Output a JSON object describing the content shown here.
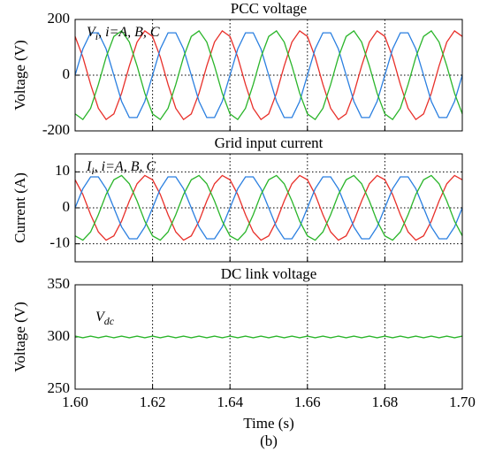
{
  "caption": "(b)",
  "chart_data": [
    {
      "type": "line",
      "title": "PCC voltage",
      "ylabel": "Voltage (V)",
      "annotation": {
        "symbol": "V",
        "subscript": "i",
        "text": ", i=A, B, C"
      },
      "xlim": [
        1.6,
        1.7
      ],
      "xticks": [
        {
          "value": 1.6,
          "label": "1.60"
        },
        1.62,
        1.64,
        1.66,
        1.68,
        {
          "value": 1.7,
          "label": "1.70"
        }
      ],
      "ylim": [
        -200,
        200
      ],
      "yticks": [
        -200,
        0,
        200
      ],
      "xgrid": true,
      "ygrid": true,
      "x": [
        1.6,
        1.602,
        1.604,
        1.606,
        1.608,
        1.61,
        1.612,
        1.614,
        1.616,
        1.618,
        1.62,
        1.622,
        1.624,
        1.626,
        1.628,
        1.63,
        1.632,
        1.634,
        1.636,
        1.638,
        1.64,
        1.642,
        1.644,
        1.646,
        1.648,
        1.65,
        1.652,
        1.654,
        1.656,
        1.658,
        1.66,
        1.662,
        1.664,
        1.666,
        1.668,
        1.67,
        1.672,
        1.674,
        1.676,
        1.678,
        1.68,
        1.682,
        1.684,
        1.686,
        1.688,
        1.69,
        1.692,
        1.694,
        1.696,
        1.698,
        1.7
      ],
      "series": [
        {
          "color": "#e8302a",
          "values": [
            139,
            65,
            -33,
            -119,
            -159,
            -139,
            -65,
            33,
            119,
            159,
            139,
            65,
            -33,
            -119,
            -159,
            -139,
            -65,
            33,
            119,
            159,
            139,
            65,
            -33,
            -119,
            -159,
            -139,
            -65,
            33,
            119,
            159,
            139,
            65,
            -33,
            -119,
            -159,
            -139,
            -65,
            33,
            119,
            159,
            139,
            65,
            -33,
            -119,
            -159,
            -139,
            -65,
            33,
            119,
            159,
            139
          ]
        },
        {
          "color": "#2a7fe0",
          "values": [
            0,
            94,
            152,
            152,
            94,
            0,
            -94,
            -152,
            -152,
            -94,
            0,
            94,
            152,
            152,
            94,
            0,
            -94,
            -152,
            -152,
            -94,
            0,
            94,
            152,
            152,
            94,
            0,
            -94,
            -152,
            -152,
            -94,
            0,
            94,
            152,
            152,
            94,
            0,
            -94,
            -152,
            -152,
            -94,
            0,
            94,
            152,
            152,
            94,
            0,
            -94,
            -152,
            -152,
            -94,
            0
          ]
        },
        {
          "color": "#2ab52a",
          "values": [
            -139,
            -159,
            -119,
            -33,
            65,
            139,
            159,
            119,
            33,
            -65,
            -139,
            -159,
            -119,
            -33,
            65,
            139,
            159,
            119,
            33,
            -65,
            -139,
            -159,
            -119,
            -33,
            65,
            139,
            159,
            119,
            33,
            -65,
            -139,
            -159,
            -119,
            -33,
            65,
            139,
            159,
            119,
            33,
            -65,
            -139,
            -159,
            -119,
            -33,
            65,
            139,
            159,
            119,
            33,
            -65,
            -139
          ]
        }
      ]
    },
    {
      "type": "line",
      "title": "Grid input current",
      "ylabel": "Current (A)",
      "annotation": {
        "symbol": "I",
        "subscript": "i",
        "text": ", i=A, B, C"
      },
      "xlim": [
        1.6,
        1.7
      ],
      "xticks": [
        {
          "value": 1.6,
          "label": "1.60"
        },
        1.62,
        1.64,
        1.66,
        1.68,
        {
          "value": 1.7,
          "label": "1.70"
        }
      ],
      "ylim": [
        -15,
        15
      ],
      "yticks": [
        -10,
        0,
        10
      ],
      "xgrid": true,
      "ygrid": true,
      "x": [
        1.6,
        1.602,
        1.604,
        1.606,
        1.608,
        1.61,
        1.612,
        1.614,
        1.616,
        1.618,
        1.62,
        1.622,
        1.624,
        1.626,
        1.628,
        1.63,
        1.632,
        1.634,
        1.636,
        1.638,
        1.64,
        1.642,
        1.644,
        1.646,
        1.648,
        1.65,
        1.652,
        1.654,
        1.656,
        1.658,
        1.66,
        1.662,
        1.664,
        1.666,
        1.668,
        1.67,
        1.672,
        1.674,
        1.676,
        1.678,
        1.68,
        1.682,
        1.684,
        1.686,
        1.688,
        1.69,
        1.692,
        1.694,
        1.696,
        1.698,
        1.7
      ],
      "series": [
        {
          "color": "#e8302a",
          "values": [
            7.8,
            3.7,
            -1.9,
            -6.7,
            -9,
            -7.8,
            -3.7,
            1.9,
            6.7,
            9,
            7.8,
            3.7,
            -1.9,
            -6.7,
            -9,
            -7.8,
            -3.7,
            1.9,
            6.7,
            9,
            7.8,
            3.7,
            -1.9,
            -6.7,
            -9,
            -7.8,
            -3.7,
            1.9,
            6.7,
            9,
            7.8,
            3.7,
            -1.9,
            -6.7,
            -9,
            -7.8,
            -3.7,
            1.9,
            6.7,
            9,
            7.8,
            3.7,
            -1.9,
            -6.7,
            -9,
            -7.8,
            -3.7,
            1.9,
            6.7,
            9,
            7.8
          ]
        },
        {
          "color": "#2a7fe0",
          "values": [
            0,
            5.3,
            8.6,
            8.6,
            5.3,
            0,
            -5.3,
            -8.6,
            -8.6,
            -5.3,
            0,
            5.3,
            8.6,
            8.6,
            5.3,
            0,
            -5.3,
            -8.6,
            -8.6,
            -5.3,
            0,
            5.3,
            8.6,
            8.6,
            5.3,
            0,
            -5.3,
            -8.6,
            -8.6,
            -5.3,
            0,
            5.3,
            8.6,
            8.6,
            5.3,
            0,
            -5.3,
            -8.6,
            -8.6,
            -5.3,
            0,
            5.3,
            8.6,
            8.6,
            5.3,
            0,
            -5.3,
            -8.6,
            -8.6,
            -5.3,
            0
          ]
        },
        {
          "color": "#2ab52a",
          "values": [
            -7.8,
            -9,
            -6.7,
            -1.9,
            3.7,
            7.8,
            9,
            6.7,
            1.9,
            -3.7,
            -7.8,
            -9,
            -6.7,
            -1.9,
            3.7,
            7.8,
            9,
            6.7,
            1.9,
            -3.7,
            -7.8,
            -9,
            -6.7,
            -1.9,
            3.7,
            7.8,
            9,
            6.7,
            1.9,
            -3.7,
            -7.8,
            -9,
            -6.7,
            -1.9,
            3.7,
            7.8,
            9,
            6.7,
            1.9,
            -3.7,
            -7.8,
            -9,
            -6.7,
            -1.9,
            3.7,
            7.8,
            9,
            6.7,
            1.9,
            -3.7,
            -7.8
          ]
        }
      ]
    },
    {
      "type": "line",
      "title": "DC link voltage",
      "ylabel": "Voltage (V)",
      "xlabel": "Time (s)",
      "annotation": {
        "symbol": "V",
        "subscript": "dc"
      },
      "xlim": [
        1.6,
        1.7
      ],
      "xticks": [
        {
          "value": 1.6,
          "label": "1.60"
        },
        1.62,
        1.64,
        1.66,
        1.68,
        {
          "value": 1.7,
          "label": "1.70"
        }
      ],
      "ylim": [
        250,
        350
      ],
      "yticks": [
        250,
        300,
        350
      ],
      "xgrid": true,
      "ygrid": false,
      "x": [
        1.6,
        1.602,
        1.604,
        1.606,
        1.608,
        1.61,
        1.612,
        1.614,
        1.616,
        1.618,
        1.62,
        1.622,
        1.624,
        1.626,
        1.628,
        1.63,
        1.632,
        1.634,
        1.636,
        1.638,
        1.64,
        1.642,
        1.644,
        1.646,
        1.648,
        1.65,
        1.652,
        1.654,
        1.656,
        1.658,
        1.66,
        1.662,
        1.664,
        1.666,
        1.668,
        1.67,
        1.672,
        1.674,
        1.676,
        1.678,
        1.68,
        1.682,
        1.684,
        1.686,
        1.688,
        1.69,
        1.692,
        1.694,
        1.696,
        1.698,
        1.7
      ],
      "series": [
        {
          "color": "#2ab52a",
          "values": [
            300.8,
            299.2,
            300.8,
            299.2,
            300.8,
            299.2,
            300.8,
            299.2,
            300.8,
            299.2,
            300.8,
            299.2,
            300.8,
            299.2,
            300.8,
            299.2,
            300.8,
            299.2,
            300.8,
            299.2,
            300.8,
            299.2,
            300.8,
            299.2,
            300.8,
            299.2,
            300.8,
            299.2,
            300.8,
            299.2,
            300.8,
            299.2,
            300.8,
            299.2,
            300.8,
            299.2,
            300.8,
            299.2,
            300.8,
            299.2,
            300.8,
            299.2,
            300.8,
            299.2,
            300.8,
            299.2,
            300.8,
            299.2,
            300.8,
            299.2,
            300.8
          ]
        }
      ]
    }
  ]
}
